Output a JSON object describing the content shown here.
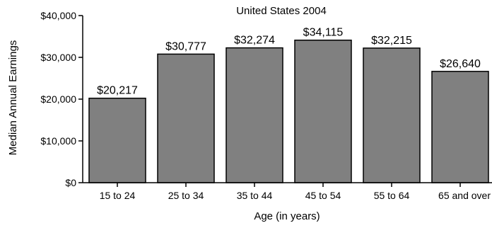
{
  "chart_data": {
    "type": "bar",
    "title": "United States 2004",
    "xlabel": "Age (in years)",
    "ylabel": "Median Annual Earnings",
    "categories": [
      "15 to 24",
      "25 to 34",
      "35 to 44",
      "45 to 54",
      "55 to 64",
      "65 and over"
    ],
    "values": [
      20217,
      30777,
      32274,
      34115,
      32215,
      26640
    ],
    "value_labels": [
      "$20,217",
      "$30,777",
      "$32,274",
      "$34,115",
      "$32,215",
      "$26,640"
    ],
    "yticks": [
      0,
      10000,
      20000,
      30000,
      40000
    ],
    "ytick_labels": [
      "$0",
      "$10,000",
      "$20,000",
      "$30,000",
      "$40,000"
    ],
    "ylim": [
      0,
      40000
    ],
    "grid": false,
    "legend": "none",
    "bar_color": "#808080",
    "bar_edge_color": "#000000"
  }
}
